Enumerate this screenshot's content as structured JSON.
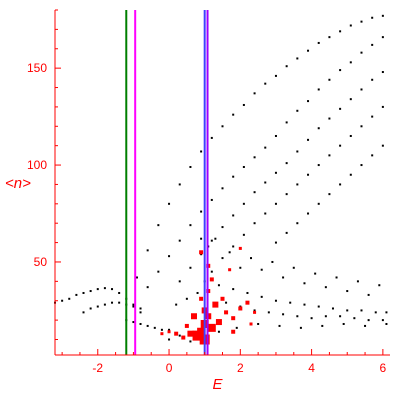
{
  "chart_data": {
    "type": "scatter",
    "title": "",
    "xlabel": "E",
    "ylabel": "<n>",
    "xlim": [
      -3.2,
      6.2
    ],
    "ylim": [
      2,
      180
    ],
    "grid": false,
    "legend": "none",
    "x_ticks": [
      -2,
      0,
      2,
      4,
      6
    ],
    "x_tick_labels": [
      "-2",
      "0",
      "2",
      "4",
      "6"
    ],
    "y_ticks": [
      50,
      100,
      150
    ],
    "y_tick_labels": [
      "50",
      "100",
      "150"
    ],
    "colors": {
      "axes": "#ff0000",
      "black_points": "#000000",
      "red_points": "#ff0000",
      "line_green": "#007f00",
      "line_magenta": "#ff00ff",
      "line_blue": "#4040ff",
      "line_purple": "#a000ff"
    },
    "vertical_lines": [
      {
        "x": -1.2,
        "color": "#007f00"
      },
      {
        "x": -0.95,
        "color": "#ff00ff"
      },
      {
        "x": 1.0,
        "color": "#4040ff"
      },
      {
        "x": 1.08,
        "color": "#a000ff"
      }
    ],
    "series": [
      {
        "color": "#000000",
        "kind": "dotted-curve",
        "points": [
          [
            -3.2,
            29
          ],
          [
            -3.0,
            30
          ],
          [
            -2.8,
            31
          ],
          [
            -2.6,
            33
          ],
          [
            -2.4,
            34
          ],
          [
            -2.2,
            35
          ],
          [
            -2.0,
            36
          ],
          [
            -1.8,
            36.5
          ],
          [
            -1.6,
            36
          ],
          [
            -1.4,
            34
          ],
          [
            -1.2,
            31
          ],
          [
            -1.0,
            28
          ],
          [
            -0.8,
            24
          ],
          [
            -2.4,
            24
          ],
          [
            -2.2,
            26
          ],
          [
            -2.0,
            27
          ],
          [
            -1.8,
            28
          ],
          [
            -1.6,
            29
          ],
          [
            -1.4,
            29
          ],
          [
            -1.2,
            28
          ],
          [
            -1.0,
            27
          ],
          [
            -0.8,
            26
          ],
          [
            -1.2,
            20
          ],
          [
            -1.0,
            19
          ],
          [
            -0.8,
            18
          ],
          [
            -0.6,
            17
          ],
          [
            -0.4,
            16
          ],
          [
            -0.2,
            15
          ],
          [
            0.0,
            15
          ],
          [
            -0.9,
            42
          ],
          [
            -0.6,
            56
          ],
          [
            -0.3,
            69
          ],
          [
            0.0,
            80
          ],
          [
            0.3,
            90
          ],
          [
            0.6,
            99
          ],
          [
            0.9,
            107
          ],
          [
            1.2,
            114
          ],
          [
            1.5,
            120
          ],
          [
            1.8,
            126
          ],
          [
            2.1,
            131
          ],
          [
            2.4,
            137
          ],
          [
            2.7,
            142
          ],
          [
            3.0,
            146
          ],
          [
            3.3,
            151
          ],
          [
            3.6,
            155
          ],
          [
            3.9,
            159
          ],
          [
            4.2,
            163
          ],
          [
            4.5,
            166
          ],
          [
            4.8,
            169
          ],
          [
            5.1,
            172
          ],
          [
            5.4,
            174
          ],
          [
            5.7,
            176
          ],
          [
            6.0,
            177
          ],
          [
            -0.6,
            37
          ],
          [
            -0.3,
            45
          ],
          [
            0.0,
            53
          ],
          [
            0.3,
            61
          ],
          [
            0.6,
            69
          ],
          [
            0.9,
            76
          ],
          [
            1.2,
            82
          ],
          [
            1.5,
            88
          ],
          [
            1.8,
            94
          ],
          [
            2.1,
            99
          ],
          [
            2.4,
            104
          ],
          [
            2.7,
            109
          ],
          [
            3.0,
            115
          ],
          [
            3.3,
            122
          ],
          [
            3.6,
            128
          ],
          [
            3.9,
            133
          ],
          [
            4.2,
            139
          ],
          [
            4.5,
            144
          ],
          [
            4.8,
            149
          ],
          [
            5.1,
            153
          ],
          [
            5.4,
            158
          ],
          [
            5.7,
            162
          ],
          [
            6.0,
            166
          ],
          [
            0.3,
            40
          ],
          [
            0.6,
            47
          ],
          [
            0.9,
            54
          ],
          [
            1.2,
            61
          ],
          [
            1.5,
            68
          ],
          [
            1.8,
            74
          ],
          [
            2.1,
            80
          ],
          [
            2.4,
            86
          ],
          [
            2.7,
            91
          ],
          [
            3.0,
            96
          ],
          [
            3.3,
            101
          ],
          [
            3.6,
            107
          ],
          [
            3.9,
            113
          ],
          [
            4.2,
            119
          ],
          [
            4.5,
            124
          ],
          [
            4.8,
            129
          ],
          [
            5.1,
            134
          ],
          [
            5.4,
            139
          ],
          [
            5.7,
            144
          ],
          [
            6.0,
            148
          ],
          [
            1.2,
            45
          ],
          [
            1.5,
            52
          ],
          [
            1.8,
            58
          ],
          [
            2.1,
            64
          ],
          [
            2.4,
            70
          ],
          [
            2.7,
            75
          ],
          [
            3.0,
            80
          ],
          [
            3.3,
            85
          ],
          [
            3.6,
            90
          ],
          [
            3.9,
            95
          ],
          [
            4.2,
            100
          ],
          [
            4.5,
            105
          ],
          [
            4.8,
            110
          ],
          [
            5.1,
            115
          ],
          [
            5.4,
            120
          ],
          [
            5.7,
            125
          ],
          [
            6.0,
            130
          ],
          [
            3.0,
            60
          ],
          [
            3.3,
            65
          ],
          [
            3.6,
            70
          ],
          [
            3.9,
            75
          ],
          [
            4.2,
            80
          ],
          [
            4.5,
            85
          ],
          [
            4.8,
            90
          ],
          [
            5.1,
            95
          ],
          [
            5.4,
            100
          ],
          [
            5.7,
            105
          ],
          [
            6.0,
            110
          ],
          [
            0.9,
            62
          ],
          [
            1.1,
            58
          ],
          [
            1.3,
            62
          ],
          [
            1.7,
            55
          ],
          [
            2.0,
            47
          ],
          [
            2.3,
            52
          ],
          [
            2.6,
            46
          ],
          [
            2.9,
            50
          ],
          [
            3.2,
            42
          ],
          [
            3.5,
            47
          ],
          [
            3.8,
            39
          ],
          [
            4.1,
            44
          ],
          [
            4.4,
            37
          ],
          [
            4.7,
            42
          ],
          [
            5.0,
            35
          ],
          [
            5.3,
            40
          ],
          [
            5.6,
            33
          ],
          [
            5.9,
            38
          ],
          [
            1.0,
            40
          ],
          [
            1.4,
            38
          ],
          [
            1.8,
            36
          ],
          [
            2.2,
            34
          ],
          [
            2.6,
            32
          ],
          [
            3.0,
            30
          ],
          [
            3.4,
            29
          ],
          [
            3.8,
            28
          ],
          [
            4.2,
            27
          ],
          [
            4.6,
            26
          ],
          [
            5.0,
            25
          ],
          [
            5.4,
            25
          ],
          [
            5.8,
            24
          ],
          [
            6.1,
            24
          ],
          [
            0.2,
            28
          ],
          [
            0.5,
            31
          ],
          [
            0.8,
            34
          ],
          [
            1.6,
            29
          ],
          [
            2.0,
            27
          ],
          [
            2.4,
            25
          ],
          [
            2.8,
            24
          ],
          [
            3.2,
            23
          ],
          [
            3.6,
            22
          ],
          [
            4.0,
            21
          ],
          [
            4.4,
            22
          ],
          [
            4.8,
            22
          ],
          [
            5.2,
            21
          ],
          [
            5.6,
            20
          ],
          [
            6.0,
            20
          ],
          [
            0.0,
            10
          ],
          [
            0.3,
            12
          ],
          [
            0.6,
            9
          ],
          [
            1.4,
            14
          ],
          [
            1.9,
            16
          ],
          [
            2.5,
            18
          ],
          [
            3.1,
            17
          ],
          [
            3.7,
            16
          ],
          [
            4.3,
            17
          ],
          [
            4.9,
            18
          ],
          [
            5.5,
            17
          ],
          [
            6.1,
            18
          ]
        ]
      },
      {
        "color": "#ff0000",
        "kind": "markers",
        "points": [
          [
            0.8,
            12,
            5
          ],
          [
            0.9,
            14,
            4
          ],
          [
            1.0,
            18,
            4
          ],
          [
            1.1,
            22,
            3
          ],
          [
            1.2,
            16,
            4
          ],
          [
            1.0,
            10,
            5
          ],
          [
            0.6,
            13,
            3
          ],
          [
            0.4,
            11,
            2
          ],
          [
            0.2,
            13,
            2
          ],
          [
            1.4,
            19,
            3
          ],
          [
            1.6,
            24,
            2
          ],
          [
            1.8,
            21,
            2
          ],
          [
            2.0,
            26,
            2
          ],
          [
            2.2,
            29,
            2
          ],
          [
            2.4,
            24,
            1.5
          ],
          [
            0.9,
            31,
            2
          ],
          [
            1.1,
            35,
            2
          ],
          [
            1.2,
            41,
            2
          ],
          [
            1.1,
            48,
            2
          ],
          [
            0.9,
            55,
            2
          ],
          [
            2.0,
            57,
            1.5
          ],
          [
            1.7,
            46,
            1.5
          ],
          [
            1.5,
            31,
            2
          ],
          [
            0.5,
            17,
            2
          ],
          [
            0.0,
            14,
            1.5
          ],
          [
            -0.2,
            13,
            1.5
          ],
          [
            1.8,
            14,
            2
          ],
          [
            2.3,
            18,
            1.5
          ],
          [
            1.3,
            28,
            3
          ],
          [
            0.7,
            22,
            3
          ],
          [
            1.0,
            25,
            3
          ]
        ]
      }
    ]
  }
}
